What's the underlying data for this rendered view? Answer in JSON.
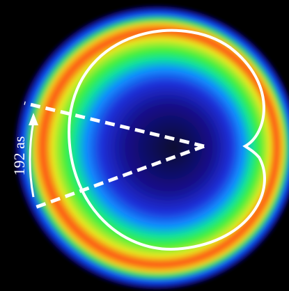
{
  "annotation": "192 as"
}
